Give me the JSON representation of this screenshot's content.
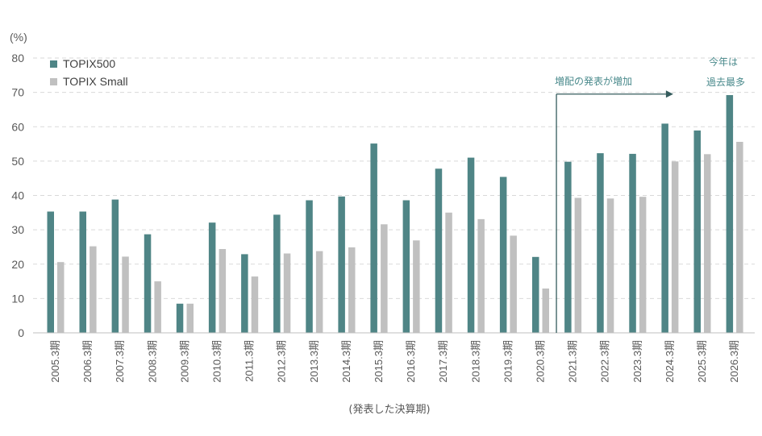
{
  "chart_data": {
    "type": "bar",
    "unit_label": "(%)",
    "xlabel": "(発表した決算期)",
    "ylim": [
      0,
      80
    ],
    "yticks": [
      0,
      10,
      20,
      30,
      40,
      50,
      60,
      70,
      80
    ],
    "grid": true,
    "legend_position": "top-left",
    "categories": [
      "2005.3期",
      "2006.3期",
      "2007.3期",
      "2008.3期",
      "2009.3期",
      "2010.3期",
      "2011.3期",
      "2012.3期",
      "2013.3期",
      "2014.3期",
      "2015.3期",
      "2016.3期",
      "2017.3期",
      "2018.3期",
      "2019.3期",
      "2020.3期",
      "2021.3期",
      "2022.3期",
      "2023.3期",
      "2024.3期",
      "2025.3期",
      "2026.3期"
    ],
    "series": [
      {
        "name": "TOPIX500",
        "color": "#4f8586",
        "values": [
          35.3,
          35.3,
          38.8,
          28.7,
          8.5,
          32.1,
          22.9,
          34.4,
          38.6,
          39.7,
          55.1,
          38.6,
          47.8,
          51.0,
          45.4,
          22.1,
          49.8,
          52.3,
          52.1,
          60.9,
          58.9,
          69.2
        ]
      },
      {
        "name": "TOPIX Small",
        "color": "#c0c0c0",
        "values": [
          20.6,
          25.2,
          22.2,
          15.0,
          8.5,
          24.4,
          16.4,
          23.1,
          23.8,
          24.9,
          31.6,
          26.9,
          35.0,
          33.1,
          28.3,
          12.9,
          39.3,
          39.1,
          39.6,
          49.9,
          52.0,
          55.6
        ]
      }
    ],
    "annotations": {
      "increase_label": "増配の発表が増加",
      "increase_start_category": "2021.3期",
      "record_label_line1": "今年は",
      "record_label_line2": "過去最多"
    }
  }
}
